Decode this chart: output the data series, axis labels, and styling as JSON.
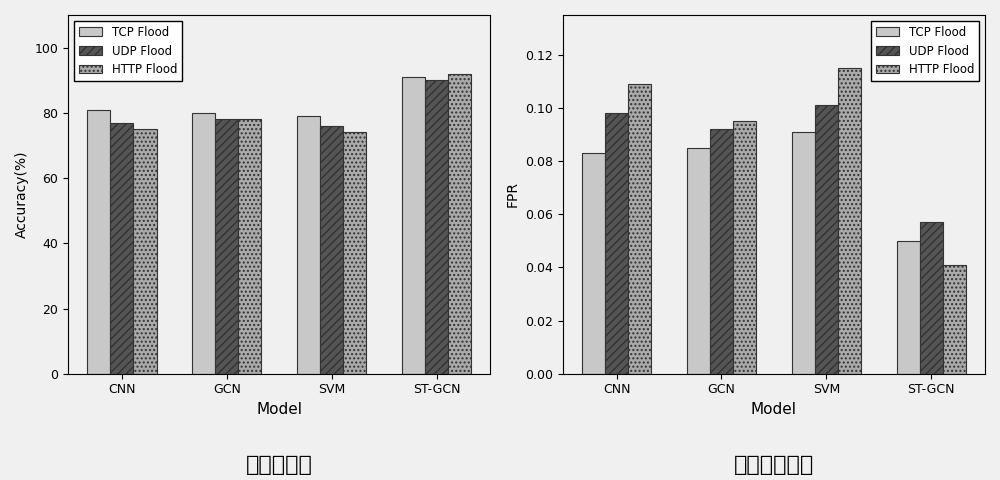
{
  "categories": [
    "CNN",
    "GCN",
    "SVM",
    "ST-GCN"
  ],
  "accuracy": {
    "TCP Flood": [
      81,
      80,
      79,
      91
    ],
    "UDP Flood": [
      77,
      78,
      76,
      90
    ],
    "HTTP Flood": [
      75,
      78,
      74,
      92
    ]
  },
  "fpr": {
    "TCP Flood": [
      0.083,
      0.085,
      0.091,
      0.05
    ],
    "UDP Flood": [
      0.098,
      0.092,
      0.101,
      0.057
    ],
    "HTTP Flood": [
      0.109,
      0.095,
      0.115,
      0.041
    ]
  },
  "series_labels": [
    "TCP Flood",
    "UDP Flood",
    "HTTP Flood"
  ],
  "bar_color_tcp": "#c8c8c8",
  "bar_color_udp": "#555555",
  "bar_color_http": "#aaaaaa",
  "hatch_tcp": "",
  "hatch_udp": "////",
  "hatch_http": "....",
  "acc_ylabel": "Accuracy(%)",
  "fpr_ylabel": "FPR",
  "xlabel": "Model",
  "acc_title": "检测准确率",
  "fpr_title": "检测假正例率",
  "acc_ylim": [
    0,
    110
  ],
  "acc_yticks": [
    0,
    20,
    40,
    60,
    80,
    100
  ],
  "fpr_ylim": [
    0.0,
    0.135
  ],
  "fpr_yticks": [
    0.0,
    0.02,
    0.04,
    0.06,
    0.08,
    0.1,
    0.12
  ],
  "bar_width": 0.22,
  "edge_color": "#333333",
  "background_color": "#f0f0f0"
}
